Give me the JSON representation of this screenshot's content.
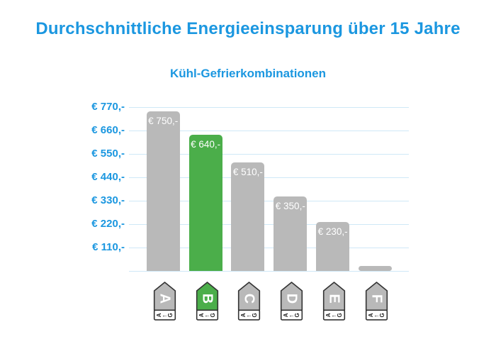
{
  "chart_data": {
    "type": "bar",
    "title": "Durchschnittliche Energieeinsparung über 15 Jahre",
    "subtitle": "Kühl-Gefrierkombinationen",
    "categories": [
      "A",
      "B",
      "C",
      "D",
      "E",
      "F"
    ],
    "values": [
      750,
      640,
      510,
      350,
      230,
      25
    ],
    "bar_labels": [
      "€ 750,-",
      "€ 640,-",
      "€ 510,-",
      "€ 350,-",
      "€ 230,-",
      ""
    ],
    "highlighted_index": 1,
    "y_ticks": [
      {
        "value": 770,
        "label": "€ 770,-"
      },
      {
        "value": 660,
        "label": "€ 660,-"
      },
      {
        "value": 550,
        "label": "€ 550,-"
      },
      {
        "value": 440,
        "label": "€ 440,-"
      },
      {
        "value": 330,
        "label": "€ 330,-"
      },
      {
        "value": 220,
        "label": "€ 220,-"
      },
      {
        "value": 110,
        "label": "€ 110,-"
      },
      {
        "value": 0,
        "label": ""
      }
    ],
    "ylim": [
      0,
      770
    ],
    "xlabel": "",
    "ylabel": "",
    "grid": true,
    "legend": false,
    "x_axis_icons": {
      "type": "eu-energy-label-arrow",
      "scale_letter_left": "A",
      "scale_arrow": "←",
      "scale_letter_right": "G",
      "classes": [
        {
          "letter": "A",
          "color": "#b9b9b9"
        },
        {
          "letter": "B",
          "color": "#4bae4a"
        },
        {
          "letter": "C",
          "color": "#b9b9b9"
        },
        {
          "letter": "D",
          "color": "#b9b9b9"
        },
        {
          "letter": "E",
          "color": "#b9b9b9"
        },
        {
          "letter": "F",
          "color": "#b9b9b9"
        }
      ]
    },
    "colors": {
      "accent_blue": "#1b97e0",
      "bar_gray": "#b9b9b9",
      "bar_green": "#4bae4a",
      "gridline": "#cfe8f7",
      "bar_label_text": "#ffffff",
      "icon_outline": "#333333",
      "icon_box_fill": "#ffffff",
      "icon_box_text": "#222222",
      "background": "#ffffff"
    }
  }
}
